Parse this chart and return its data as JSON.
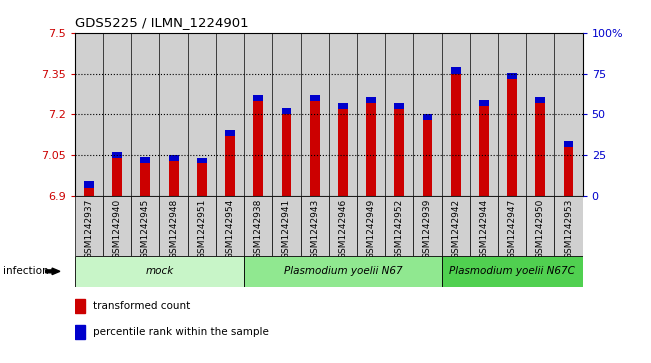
{
  "title": "GDS5225 / ILMN_1224901",
  "samples": [
    "GSM1242937",
    "GSM1242940",
    "GSM1242945",
    "GSM1242948",
    "GSM1242951",
    "GSM1242954",
    "GSM1242938",
    "GSM1242941",
    "GSM1242943",
    "GSM1242946",
    "GSM1242949",
    "GSM1242952",
    "GSM1242939",
    "GSM1242942",
    "GSM1242944",
    "GSM1242947",
    "GSM1242950",
    "GSM1242953"
  ],
  "red_values": [
    6.93,
    7.04,
    7.02,
    7.03,
    7.02,
    7.12,
    7.25,
    7.2,
    7.25,
    7.22,
    7.24,
    7.22,
    7.18,
    7.35,
    7.23,
    7.33,
    7.24,
    7.08
  ],
  "blue_heights": [
    0.025,
    0.022,
    0.022,
    0.022,
    0.02,
    0.022,
    0.022,
    0.022,
    0.022,
    0.022,
    0.022,
    0.022,
    0.022,
    0.025,
    0.022,
    0.022,
    0.022,
    0.022
  ],
  "ymin": 6.9,
  "ymax": 7.5,
  "y2min": 0,
  "y2max": 100,
  "yticks": [
    6.9,
    7.05,
    7.2,
    7.35,
    7.5
  ],
  "y2ticks": [
    0,
    25,
    50,
    75,
    100
  ],
  "y2ticklabels": [
    "0",
    "25",
    "50",
    "75",
    "100%"
  ],
  "groups": [
    {
      "label": "mock",
      "start": 0,
      "end": 6,
      "color": "#c8f5c8"
    },
    {
      "label": "Plasmodium yoelii N67",
      "start": 6,
      "end": 13,
      "color": "#90e890"
    },
    {
      "label": "Plasmodium yoelii N67C",
      "start": 13,
      "end": 18,
      "color": "#50d050"
    }
  ],
  "infection_label": "infection",
  "red_color": "#cc0000",
  "blue_color": "#0000cc",
  "bar_bg_color": "#d0d0d0",
  "ylabel_color": "#cc0000",
  "y2label_color": "#0000cc",
  "title_color": "#000000",
  "bar_width": 0.35,
  "legend_items": [
    "transformed count",
    "percentile rank within the sample"
  ]
}
